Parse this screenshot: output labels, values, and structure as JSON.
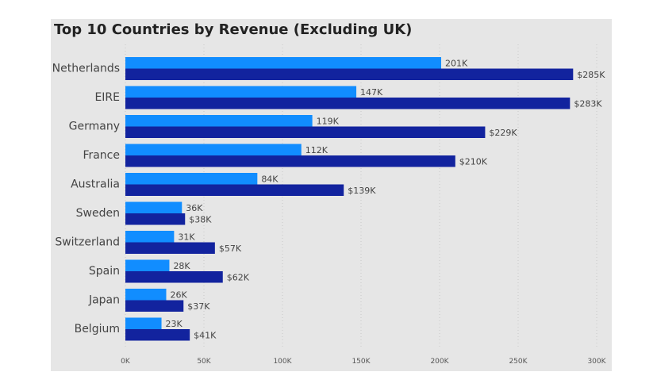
{
  "chart_data": {
    "type": "bar",
    "orientation": "horizontal",
    "title": "Top 10 Countries by Revenue (Excluding UK)",
    "categories": [
      "Netherlands",
      "EIRE",
      "Germany",
      "France",
      "Australia",
      "Sweden",
      "Switzerland",
      "Spain",
      "Japan",
      "Belgium"
    ],
    "series": [
      {
        "values": [
          201000,
          147000,
          119000,
          112000,
          84000,
          36000,
          31000,
          28000,
          26000,
          23000
        ],
        "labels": [
          "201K",
          "147K",
          "119K",
          "112K",
          "84K",
          "36K",
          "31K",
          "28K",
          "26K",
          "23K"
        ],
        "color": "#118dff"
      },
      {
        "values": [
          285000,
          283000,
          229000,
          210000,
          139000,
          38000,
          57000,
          62000,
          37000,
          41000
        ],
        "labels": [
          "$285K",
          "$283K",
          "$229K",
          "$210K",
          "$139K",
          "$38K",
          "$57K",
          "$62K",
          "$37K",
          "$41K"
        ],
        "color": "#12239e"
      }
    ],
    "xlim": [
      0,
      300000
    ],
    "xticks": [
      0,
      50000,
      100000,
      150000,
      200000,
      250000,
      300000
    ],
    "xtick_labels": [
      "0K",
      "50K",
      "100K",
      "150K",
      "200K",
      "250K",
      "300K"
    ],
    "grid": true,
    "legend": "none"
  }
}
